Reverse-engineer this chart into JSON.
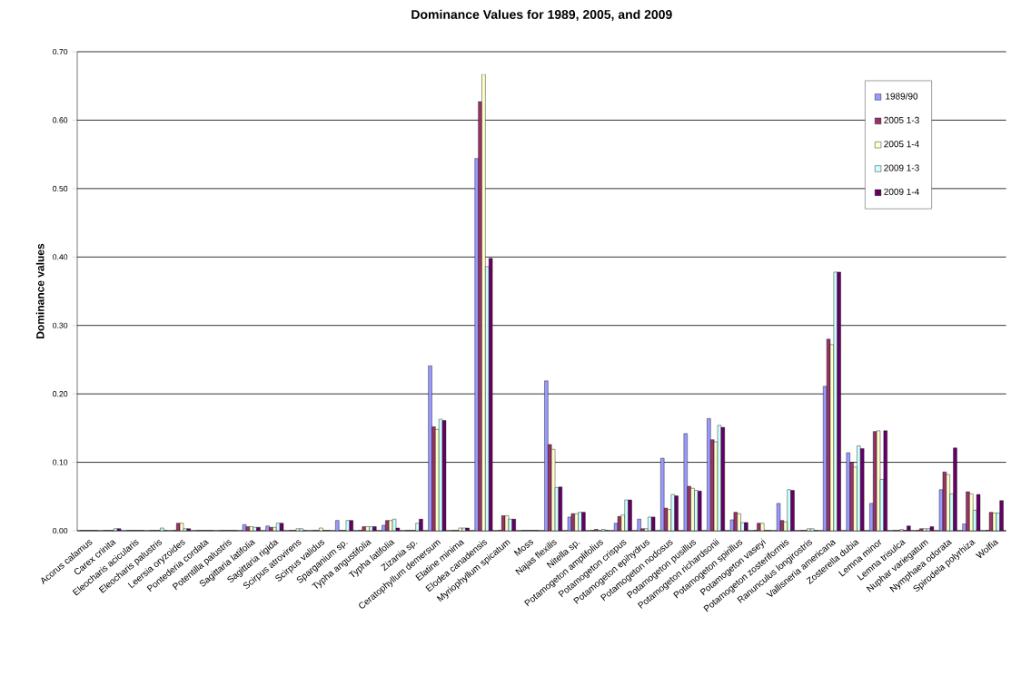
{
  "chart_data": {
    "type": "bar",
    "title": "Dominance Values for 1989, 2005, and 2009",
    "ylabel": "Dominance values",
    "categories": [
      "Acorus calamus",
      "Carex crinita",
      "Eleocharis acicularis",
      "Eleocharis palustris",
      "Leersia oryzoides",
      "Pontederia cordata",
      "Potentilla palustris",
      "Sagittaria latifolia",
      "Sagittaria rigida",
      "Scirpus atrovirens",
      "Scirpus validus",
      "Sparganium sp.",
      "Typha angustifolia",
      "Typha latifolia",
      "Zizania sp.",
      "Ceratophyllum demersum",
      "Elatine minima",
      "Elodea canadensis",
      "Myriophyllum spicatum",
      "Moss",
      "Najas flexilis",
      "Nitella sp.",
      "Potamogeton amplifolius",
      "Potamogeton crispus",
      "Potamogeton epihydrus",
      "Potamogeton nodosus",
      "Potamogeton pusillus",
      "Potamogeton richardsonii",
      "Potamogeton spirillus",
      "Potamogeton vaseyi",
      "Potamogeton zosteriformis",
      "Ranunculus longirostris",
      "Vallisneria americana",
      "Zosterella dubia",
      "Lemna minor",
      "Lemna trisulca",
      "Nuphar variegatum",
      "Nymphaea odorata",
      "Spirodela polyrhiza",
      "Wolfia"
    ],
    "series": [
      {
        "name": "1989/90",
        "color": "#9999ff",
        "values": [
          0,
          0,
          0,
          0,
          0,
          0,
          0,
          0.009,
          0.007,
          0,
          0,
          0.015,
          0,
          0.008,
          0,
          0.241,
          0,
          0.544,
          0,
          0,
          0.219,
          0.02,
          0,
          0.011,
          0.017,
          0.106,
          0.142,
          0.164,
          0.016,
          0,
          0.04,
          0,
          0.211,
          0.114,
          0.04,
          0,
          0,
          0.06,
          0.01,
          0
        ]
      },
      {
        "name": "2005 1-3",
        "color": "#993366",
        "values": [
          0,
          0,
          0,
          0,
          0.011,
          0,
          0,
          0.006,
          0.005,
          0,
          0,
          0,
          0.006,
          0.015,
          0,
          0.152,
          0,
          0.627,
          0.022,
          0,
          0.126,
          0.025,
          0.002,
          0.021,
          0.003,
          0.033,
          0.065,
          0.133,
          0.027,
          0.011,
          0.015,
          0,
          0.28,
          0.1,
          0.145,
          0,
          0.003,
          0.086,
          0.057,
          0.027
        ]
      },
      {
        "name": "2005 1-4",
        "color": "#ffffcc",
        "values": [
          0,
          0,
          0,
          0,
          0.011,
          0,
          0,
          0.006,
          0.005,
          0.003,
          0.004,
          0,
          0.006,
          0.015,
          0,
          0.148,
          0.004,
          0.667,
          0.022,
          0,
          0.119,
          0.025,
          null,
          0.023,
          0.003,
          0.031,
          0.062,
          0.13,
          0.025,
          0.011,
          0.013,
          0.003,
          0.272,
          0.093,
          0.146,
          0.002,
          0.003,
          0.082,
          0.054,
          0.026
        ]
      },
      {
        "name": "2009 1-3",
        "color": "#ccffff",
        "values": [
          0,
          0.003,
          0,
          0.004,
          0.003,
          0,
          0,
          0.005,
          0.011,
          0.003,
          0,
          0.015,
          0.006,
          0.017,
          0.011,
          0.163,
          0.004,
          0.386,
          0.017,
          0,
          0.063,
          0.027,
          0.002,
          0.045,
          0.02,
          0.053,
          0.059,
          0.154,
          0.012,
          0,
          0.06,
          0.003,
          0.378,
          0.124,
          0.075,
          0,
          0.003,
          0.054,
          0.03,
          0.026
        ]
      },
      {
        "name": "2009 1-4",
        "color": "#660066",
        "values": [
          0,
          0.003,
          0,
          0,
          0.003,
          0,
          0,
          0.005,
          0.011,
          0,
          0,
          0.015,
          0.006,
          0.004,
          0.017,
          0.161,
          0.004,
          0.398,
          0.017,
          0,
          0.064,
          0.027,
          0,
          0.045,
          0.02,
          0.051,
          0.058,
          0.151,
          0.012,
          0,
          0.059,
          0,
          0.378,
          0.12,
          0.146,
          0.007,
          0.006,
          0.121,
          0.053,
          0.044
        ]
      }
    ],
    "ylim": [
      0,
      0.7
    ],
    "yticks": [
      {
        "value": 0,
        "label": "0.00"
      },
      {
        "value": 0.1,
        "label": "0.10"
      },
      {
        "value": 0.2,
        "label": "0.20"
      },
      {
        "value": 0.3,
        "label": "0.30"
      },
      {
        "value": 0.4,
        "label": "0.40"
      },
      {
        "value": 0.5,
        "label": "0.50"
      },
      {
        "value": 0.6,
        "label": "0.60"
      },
      {
        "value": 0.7,
        "label": "0.70"
      }
    ],
    "grid": "y",
    "legend": "top right"
  }
}
